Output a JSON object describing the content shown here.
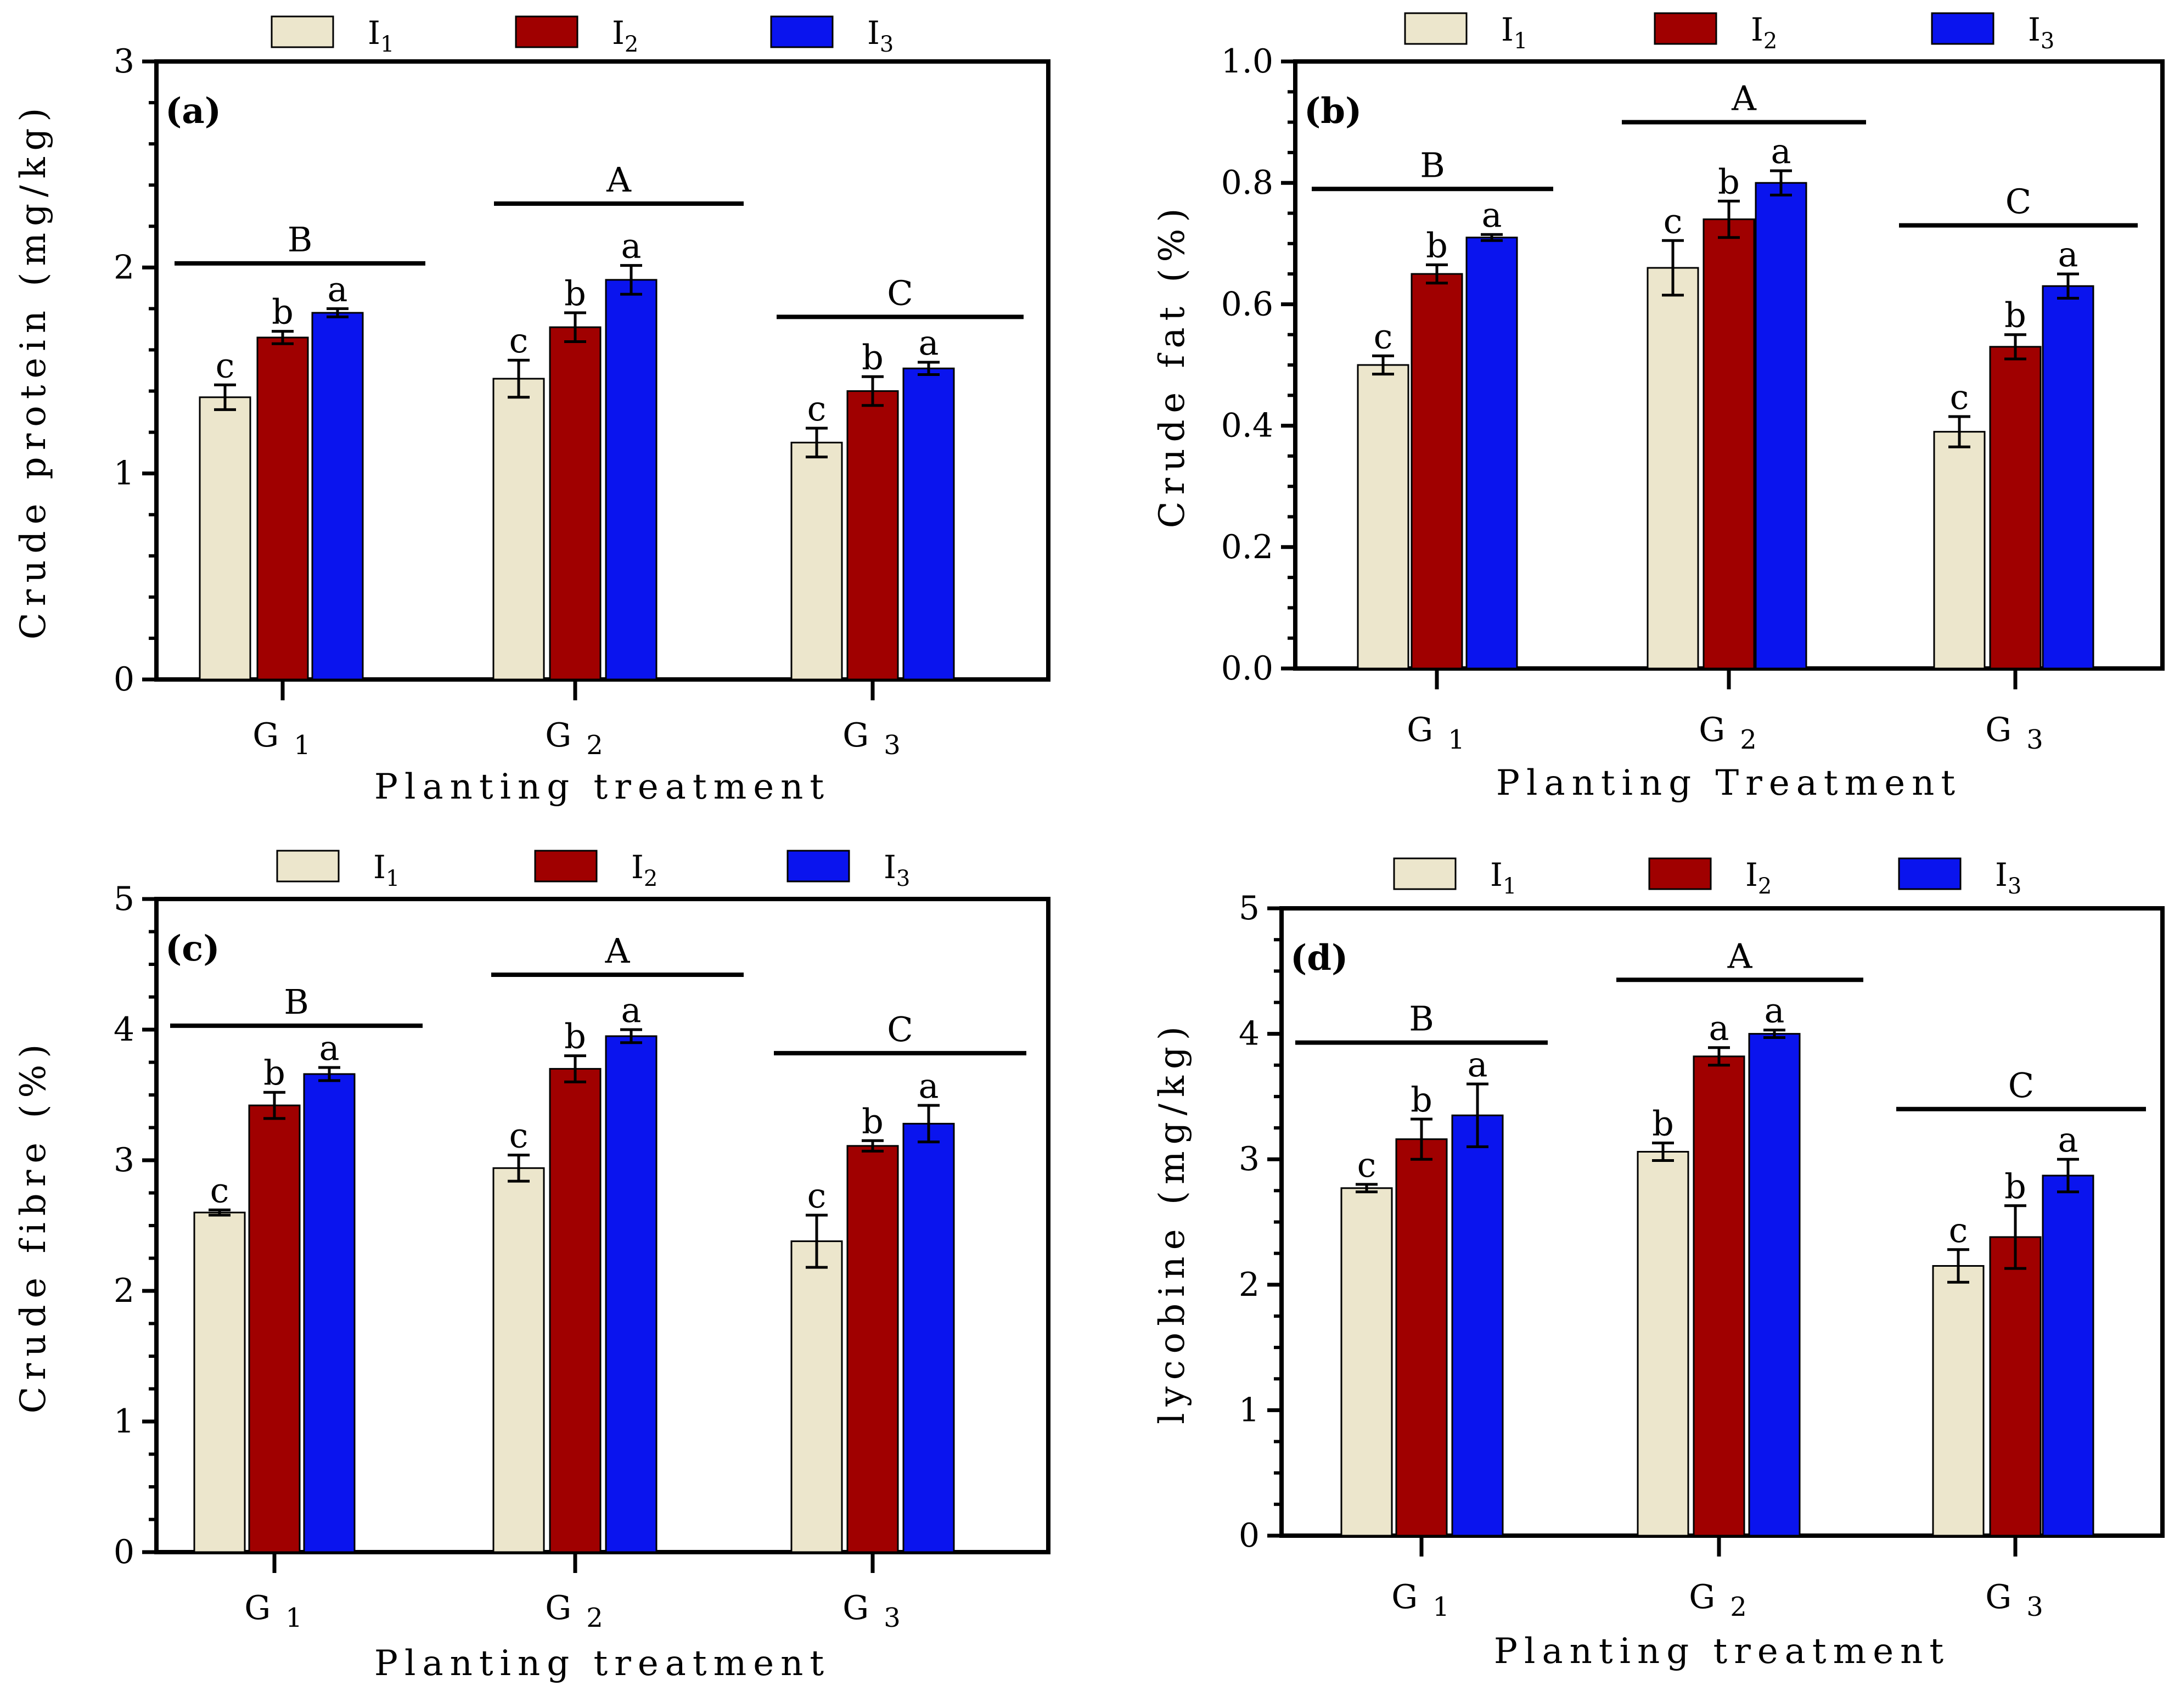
{
  "colors": {
    "I1": "#ece6cc",
    "I2": "#a00000",
    "I3": "#0a14ee",
    "axis": "#000000"
  },
  "chart_data": [
    {
      "type": "bar",
      "panel_label": "(a)",
      "ylabel": "Crude protein (mg/kg)",
      "xlabel": "Planting treatment",
      "ylim": [
        0,
        3
      ],
      "yticks": [
        "0",
        "1",
        "2",
        "3"
      ],
      "categories": [
        {
          "base": "G",
          "sub": "1"
        },
        {
          "base": "G",
          "sub": "2"
        },
        {
          "base": "G",
          "sub": "3"
        }
      ],
      "series": [
        {
          "name": "I1",
          "label": "I",
          "sub": "1",
          "values": [
            1.37,
            1.46,
            1.15
          ],
          "errors": [
            0.06,
            0.09,
            0.07
          ],
          "letters": [
            "c",
            "c",
            "c"
          ]
        },
        {
          "name": "I2",
          "label": "I",
          "sub": "2",
          "values": [
            1.66,
            1.71,
            1.4
          ],
          "errors": [
            0.03,
            0.07,
            0.07
          ],
          "letters": [
            "b",
            "b",
            "b"
          ]
        },
        {
          "name": "I3",
          "label": "I",
          "sub": "3",
          "values": [
            1.78,
            1.94,
            1.51
          ],
          "errors": [
            0.02,
            0.07,
            0.03
          ],
          "letters": [
            "a",
            "a",
            "a"
          ]
        }
      ],
      "group_letters": [
        {
          "text": "B",
          "y": 2.02
        },
        {
          "text": "A",
          "y": 2.31
        },
        {
          "text": "C",
          "y": 1.76
        }
      ]
    },
    {
      "type": "bar",
      "panel_label": "(b)",
      "ylabel": "Crude fat (%)",
      "xlabel": "Planting Treatment",
      "ylim": [
        0,
        1.0
      ],
      "yticks": [
        "0.0",
        "0.2",
        "0.4",
        "0.6",
        "0.8",
        "1.0"
      ],
      "categories": [
        {
          "base": "G",
          "sub": "1"
        },
        {
          "base": "G",
          "sub": "2"
        },
        {
          "base": "G",
          "sub": "3"
        }
      ],
      "series": [
        {
          "name": "I1",
          "label": "I",
          "sub": "1",
          "values": [
            0.5,
            0.66,
            0.39
          ],
          "errors": [
            0.015,
            0.045,
            0.025
          ],
          "letters": [
            "c",
            "c",
            "c"
          ]
        },
        {
          "name": "I2",
          "label": "I",
          "sub": "2",
          "values": [
            0.65,
            0.74,
            0.53
          ],
          "errors": [
            0.015,
            0.03,
            0.02
          ],
          "letters": [
            "b",
            "b",
            "b"
          ]
        },
        {
          "name": "I3",
          "label": "I",
          "sub": "3",
          "values": [
            0.71,
            0.8,
            0.63
          ],
          "errors": [
            0.005,
            0.02,
            0.02
          ],
          "letters": [
            "a",
            "a",
            "a"
          ]
        }
      ],
      "group_letters": [
        {
          "text": "B",
          "y": 0.79
        },
        {
          "text": "A",
          "y": 0.9
        },
        {
          "text": "C",
          "y": 0.73
        }
      ]
    },
    {
      "type": "bar",
      "panel_label": "(c)",
      "ylabel": "Crude fibre (%)",
      "xlabel": "Planting treatment",
      "ylim": [
        0,
        5
      ],
      "yticks": [
        "0",
        "1",
        "2",
        "3",
        "4",
        "5"
      ],
      "categories": [
        {
          "base": "G",
          "sub": "1"
        },
        {
          "base": "G",
          "sub": "2"
        },
        {
          "base": "G",
          "sub": "3"
        }
      ],
      "series": [
        {
          "name": "I1",
          "label": "I",
          "sub": "1",
          "values": [
            2.6,
            2.94,
            2.38
          ],
          "errors": [
            0.02,
            0.1,
            0.2
          ],
          "letters": [
            "c",
            "c",
            "c"
          ]
        },
        {
          "name": "I2",
          "label": "I",
          "sub": "2",
          "values": [
            3.42,
            3.7,
            3.11
          ],
          "errors": [
            0.1,
            0.1,
            0.04
          ],
          "letters": [
            "b",
            "b",
            "b"
          ]
        },
        {
          "name": "I3",
          "label": "I",
          "sub": "3",
          "values": [
            3.66,
            3.95,
            3.28
          ],
          "errors": [
            0.05,
            0.05,
            0.14
          ],
          "letters": [
            "a",
            "a",
            "a"
          ]
        }
      ],
      "group_letters": [
        {
          "text": "B",
          "y": 4.03
        },
        {
          "text": "A",
          "y": 4.42
        },
        {
          "text": "C",
          "y": 3.82
        }
      ]
    },
    {
      "type": "bar",
      "panel_label": "(d)",
      "ylabel": "lycobine (mg/kg)",
      "xlabel": "Planting treatment",
      "ylim": [
        0,
        5
      ],
      "yticks": [
        "0",
        "1",
        "2",
        "3",
        "4",
        "5"
      ],
      "categories": [
        {
          "base": "G",
          "sub": "1"
        },
        {
          "base": "G",
          "sub": "2"
        },
        {
          "base": "G",
          "sub": "3"
        }
      ],
      "series": [
        {
          "name": "I1",
          "label": "I",
          "sub": "1",
          "values": [
            2.77,
            3.06,
            2.15
          ],
          "errors": [
            0.03,
            0.07,
            0.13
          ],
          "letters": [
            "c",
            "b",
            "c"
          ]
        },
        {
          "name": "I2",
          "label": "I",
          "sub": "2",
          "values": [
            3.16,
            3.82,
            2.38
          ],
          "errors": [
            0.16,
            0.07,
            0.25
          ],
          "letters": [
            "b",
            "a",
            "b"
          ]
        },
        {
          "name": "I3",
          "label": "I",
          "sub": "3",
          "values": [
            3.35,
            4.0,
            2.87
          ],
          "errors": [
            0.25,
            0.03,
            0.13
          ],
          "letters": [
            "a",
            "a",
            "a"
          ]
        }
      ],
      "group_letters": [
        {
          "text": "B",
          "y": 3.93
        },
        {
          "text": "A",
          "y": 4.43
        },
        {
          "text": "C",
          "y": 3.4
        }
      ]
    }
  ]
}
